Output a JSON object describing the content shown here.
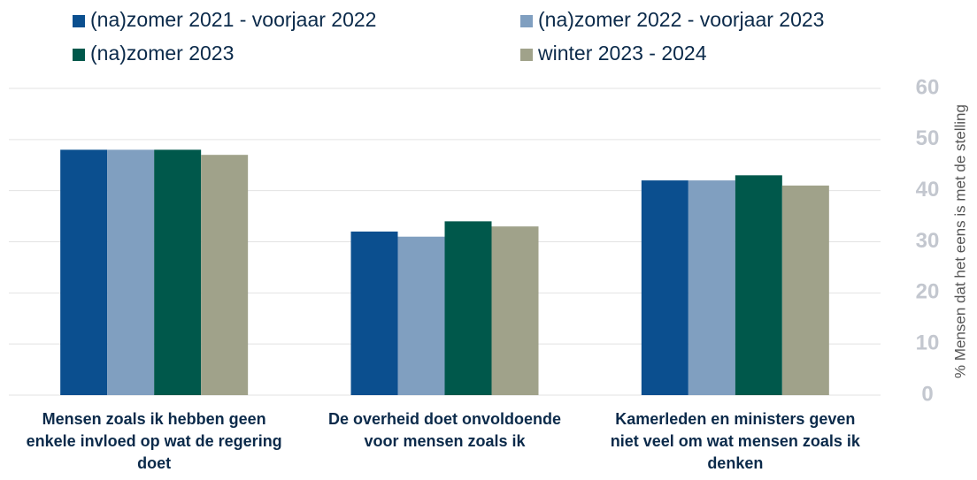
{
  "chart_data": {
    "type": "bar",
    "categories": [
      "Mensen zoals ik hebben geen enkele invloed op wat de regering doet",
      "De overheid doet onvoldoende voor mensen zoals ik",
      "Kamerleden en ministers geven niet veel om wat mensen zoals ik denken"
    ],
    "series": [
      {
        "name": "(na)zomer 2021 - voorjaar 2022",
        "color": "#0b4f8f",
        "values": [
          48,
          32,
          42
        ]
      },
      {
        "name": "(na)zomer 2022 - voorjaar 2023",
        "color": "#809fc0",
        "values": [
          48,
          31,
          42
        ]
      },
      {
        "name": "(na)zomer 2023",
        "color": "#00584b",
        "values": [
          48,
          34,
          43
        ]
      },
      {
        "name": "winter 2023 - 2024",
        "color": "#a0a28a",
        "values": [
          47,
          33,
          41
        ]
      }
    ],
    "ylabel": "% Mensen dat het eens is met de stelling",
    "ylim": [
      0,
      60
    ],
    "yticks": [
      0,
      10,
      20,
      30,
      40,
      50,
      60
    ],
    "grid": true
  }
}
